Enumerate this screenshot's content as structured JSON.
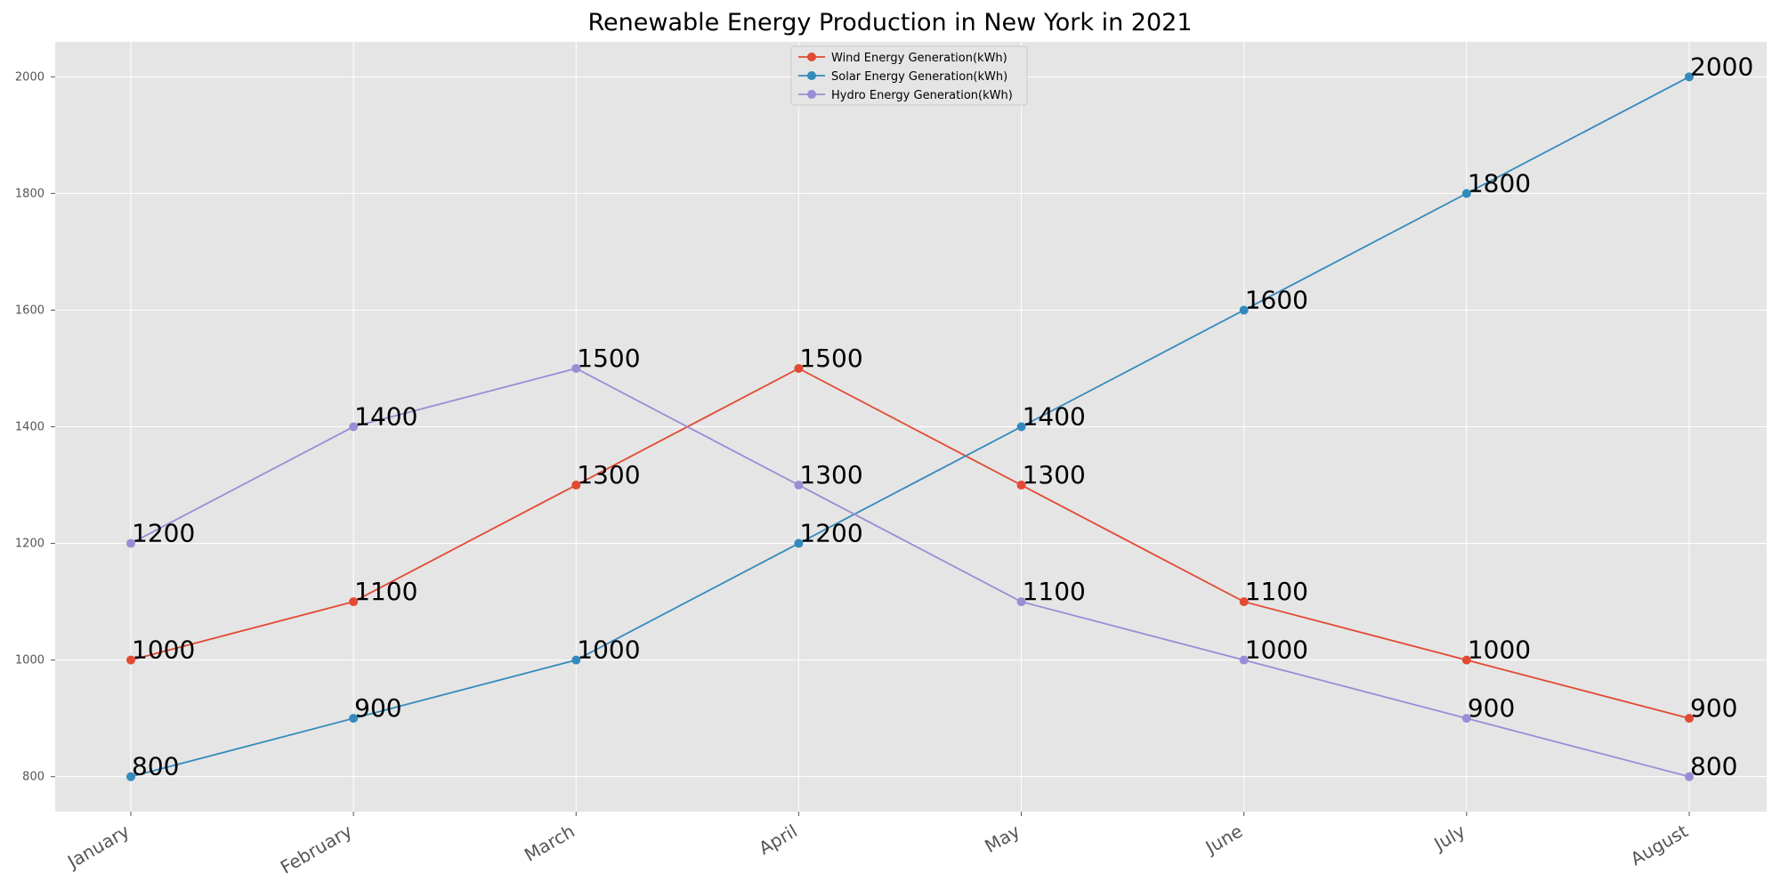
{
  "chart_data": {
    "type": "line",
    "title": "Renewable Energy Production in New York in 2021",
    "xlabel": "",
    "ylabel": "",
    "categories": [
      "January",
      "February",
      "March",
      "April",
      "May",
      "June",
      "July",
      "August"
    ],
    "ylim": [
      740,
      2060
    ],
    "yticks": [
      800,
      1000,
      1200,
      1400,
      1600,
      1800,
      2000
    ],
    "grid": true,
    "legend_position": "top-center",
    "series": [
      {
        "name": "Wind Energy Generation(kWh)",
        "color": "#E24A33",
        "values": [
          1000,
          1100,
          1300,
          1500,
          1300,
          1100,
          1000,
          900
        ]
      },
      {
        "name": "Solar Energy Generation(kWh)",
        "color": "#348ABD",
        "values": [
          800,
          900,
          1000,
          1200,
          1400,
          1600,
          1800,
          2000
        ]
      },
      {
        "name": "Hydro Energy Generation(kWh)",
        "color": "#988ED5",
        "values": [
          1200,
          1400,
          1500,
          1300,
          1100,
          1000,
          900,
          800
        ]
      }
    ],
    "plot_background": "#E5E5E5",
    "grid_color": "#FFFFFF"
  }
}
